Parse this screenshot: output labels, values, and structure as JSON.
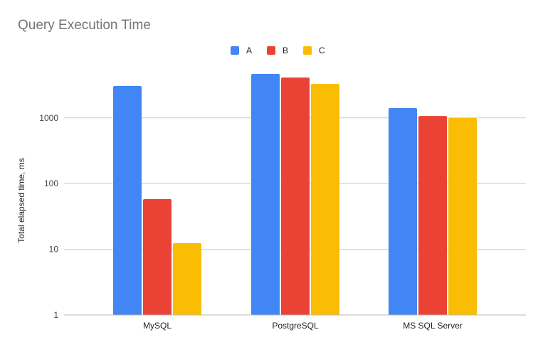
{
  "chart_data": {
    "type": "bar",
    "title": "Query Execution Time",
    "xlabel": "",
    "ylabel": "Total elapsed time, ms",
    "yscale": "log",
    "ylim": [
      1,
      10000
    ],
    "yticks": [
      "1",
      "10",
      "100",
      "1000"
    ],
    "grid": true,
    "legend_position": "top",
    "categories": [
      "MySQL",
      "PostgreSQL",
      "MS SQL Server"
    ],
    "series": [
      {
        "name": "A",
        "color": "#4285f4",
        "values": [
          3050,
          4670,
          1410
        ]
      },
      {
        "name": "B",
        "color": "#ea4335",
        "values": [
          58,
          4120,
          1070
        ]
      },
      {
        "name": "C",
        "color": "#fbbc04",
        "values": [
          12.4,
          3290,
          995
        ]
      }
    ]
  }
}
